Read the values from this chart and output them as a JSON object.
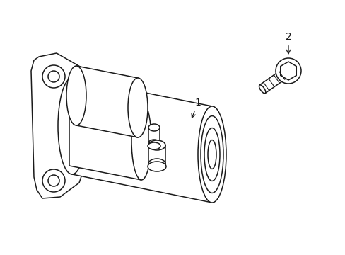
{
  "background_color": "#ffffff",
  "line_color": "#1a1a1a",
  "line_width": 1.1,
  "fig_width": 4.89,
  "fig_height": 3.6,
  "dpi": 100,
  "label1_text": "1",
  "label2_text": "2",
  "font_size": 10
}
